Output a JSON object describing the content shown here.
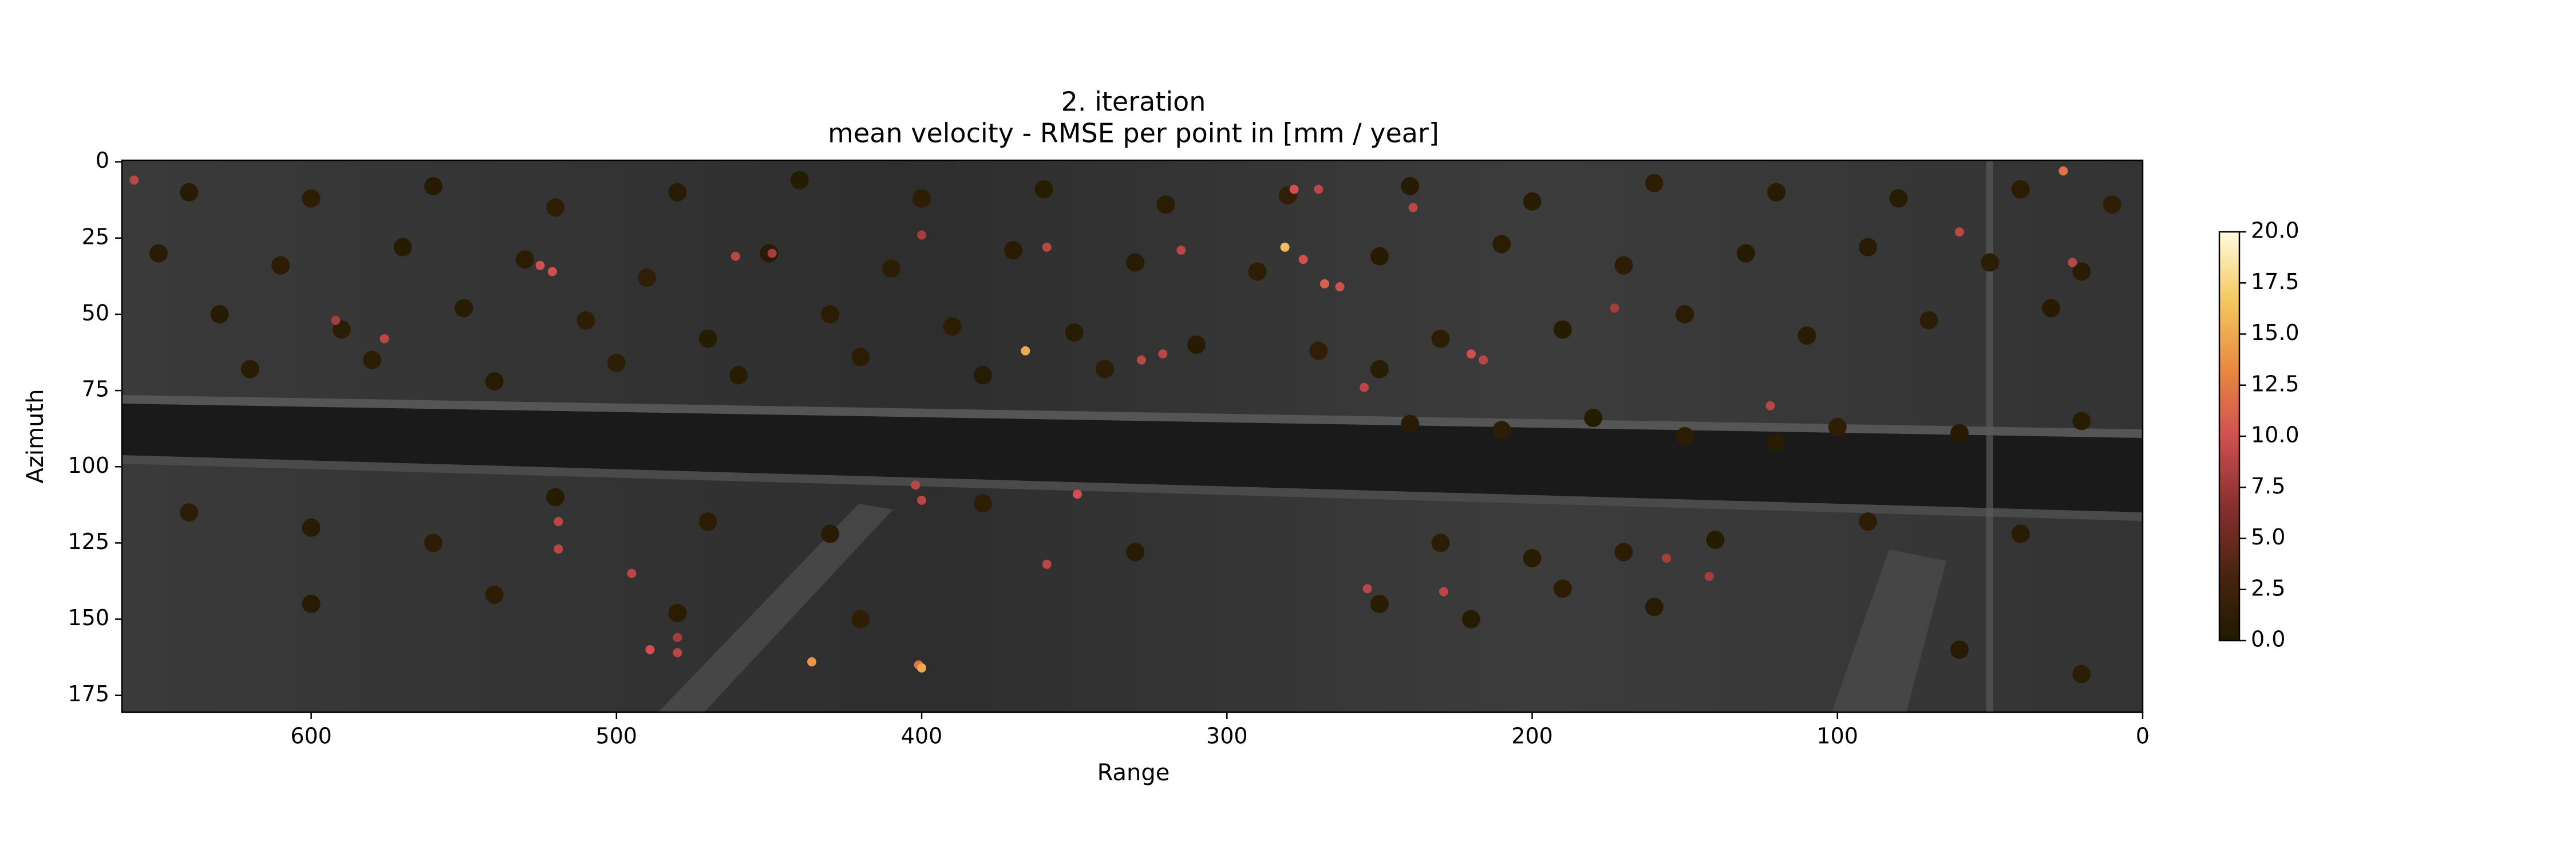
{
  "chart_data": {
    "type": "scatter",
    "title": "2. iteration",
    "subtitle": "mean velocity - RMSE per point in [mm / year]",
    "x_label": "Range",
    "y_label": "Azimuth",
    "xlim": [
      662,
      0
    ],
    "ylim": [
      180.5,
      -0.5
    ],
    "xticks": [
      600,
      500,
      400,
      300,
      200,
      100,
      0
    ],
    "yticks": [
      0,
      25,
      50,
      75,
      100,
      125,
      150,
      175
    ],
    "clim": [
      0,
      20
    ],
    "colormap": [
      "#1f1a00",
      "#4a2410",
      "#8a3030",
      "#d05050",
      "#e88a40",
      "#f5c860",
      "#fffbe0"
    ],
    "cticks": [
      {
        "value": 0,
        "label": "0.0"
      },
      {
        "value": 2.5,
        "label": "2.5"
      },
      {
        "value": 5,
        "label": "5.0"
      },
      {
        "value": 7.5,
        "label": "7.5"
      },
      {
        "value": 10,
        "label": "10.0"
      },
      {
        "value": 12.5,
        "label": "12.5"
      },
      {
        "value": 15,
        "label": "15.0"
      },
      {
        "value": 17.5,
        "label": "17.5"
      },
      {
        "value": 20,
        "label": "20.0"
      }
    ],
    "x": [
      640,
      600,
      560,
      520,
      480,
      440,
      400,
      360,
      320,
      280,
      240,
      200,
      160,
      120,
      80,
      40,
      10,
      650,
      610,
      570,
      530,
      490,
      450,
      410,
      370,
      330,
      290,
      250,
      210,
      170,
      130,
      90,
      50,
      20,
      630,
      590,
      550,
      510,
      470,
      430,
      390,
      350,
      310,
      270,
      250,
      230,
      190,
      150,
      110,
      70,
      30,
      620,
      580,
      540,
      500,
      460,
      420,
      380,
      340,
      240,
      210,
      180,
      150,
      120,
      100,
      60,
      20,
      640,
      600,
      560,
      520,
      470,
      430,
      380,
      330,
      230,
      200,
      170,
      140,
      90,
      40,
      600,
      540,
      480,
      420,
      250,
      220,
      190,
      160,
      60,
      20,
      658,
      525,
      521,
      461,
      449,
      400,
      359,
      366,
      328,
      321,
      315,
      281,
      275,
      268,
      263,
      278,
      270,
      239,
      255,
      220,
      216,
      173,
      122,
      60,
      23,
      26,
      592,
      576,
      519,
      519,
      495,
      480,
      489,
      480,
      436,
      401,
      400,
      402,
      400,
      349,
      359,
      229,
      254,
      156,
      142
    ],
    "y": [
      10,
      12,
      8,
      15,
      10,
      6,
      12,
      9,
      14,
      11,
      8,
      13,
      7,
      10,
      12,
      9,
      14,
      30,
      34,
      28,
      32,
      38,
      30,
      35,
      29,
      33,
      36,
      31,
      27,
      34,
      30,
      28,
      33,
      36,
      50,
      55,
      48,
      52,
      58,
      50,
      54,
      56,
      60,
      62,
      68,
      58,
      55,
      50,
      57,
      52,
      48,
      68,
      65,
      72,
      66,
      70,
      64,
      70,
      68,
      86,
      88,
      84,
      90,
      92,
      87,
      89,
      85,
      115,
      120,
      125,
      110,
      118,
      122,
      112,
      128,
      125,
      130,
      128,
      124,
      118,
      122,
      145,
      142,
      148,
      150,
      145,
      150,
      140,
      146,
      160,
      168,
      6,
      34,
      36,
      31,
      30,
      24,
      28,
      62,
      65,
      63,
      29,
      28,
      32,
      40,
      41,
      9,
      9,
      15,
      74,
      63,
      65,
      48,
      80,
      23,
      33,
      3,
      52,
      58,
      118,
      127,
      135,
      156,
      160,
      161,
      164,
      165,
      166,
      106,
      111,
      109,
      132,
      141,
      140,
      130,
      136
    ],
    "values": [
      0.5,
      1.0,
      0.6,
      1.2,
      0.8,
      0.5,
      1.1,
      0.7,
      0.9,
      1.3,
      0.6,
      0.8,
      1.0,
      0.5,
      0.7,
      0.9,
      1.2,
      0.8,
      1.1,
      0.5,
      0.9,
      1.4,
      0.6,
      1.0,
      0.7,
      0.8,
      1.2,
      0.6,
      0.9,
      1.1,
      0.5,
      0.8,
      1.0,
      0.7,
      0.6,
      1.0,
      0.8,
      1.2,
      0.5,
      0.9,
      1.1,
      0.7,
      0.6,
      1.3,
      0.8,
      1.0,
      0.5,
      0.9,
      0.7,
      1.1,
      0.6,
      0.8,
      1.0,
      0.5,
      1.2,
      0.7,
      0.9,
      0.6,
      1.1,
      0.8,
      1.0,
      0.5,
      0.9,
      0.7,
      1.2,
      0.6,
      0.8,
      1.0,
      0.7,
      1.1,
      0.5,
      0.9,
      0.8,
      1.2,
      0.6,
      1.0,
      0.7,
      0.9,
      0.5,
      1.1,
      0.8,
      0.6,
      1.0,
      0.9,
      1.2,
      0.7,
      0.5,
      1.1,
      0.8,
      0.6,
      1.0,
      9,
      10,
      10,
      9,
      8,
      8,
      9,
      15,
      9,
      9,
      9,
      16,
      10,
      11,
      10,
      10,
      9,
      9,
      9,
      10,
      9,
      8,
      9,
      9,
      9,
      12,
      8,
      9,
      9,
      9,
      9,
      8,
      10,
      9,
      14,
      12,
      15,
      9,
      9,
      10,
      9,
      9,
      9,
      8,
      8
    ]
  }
}
